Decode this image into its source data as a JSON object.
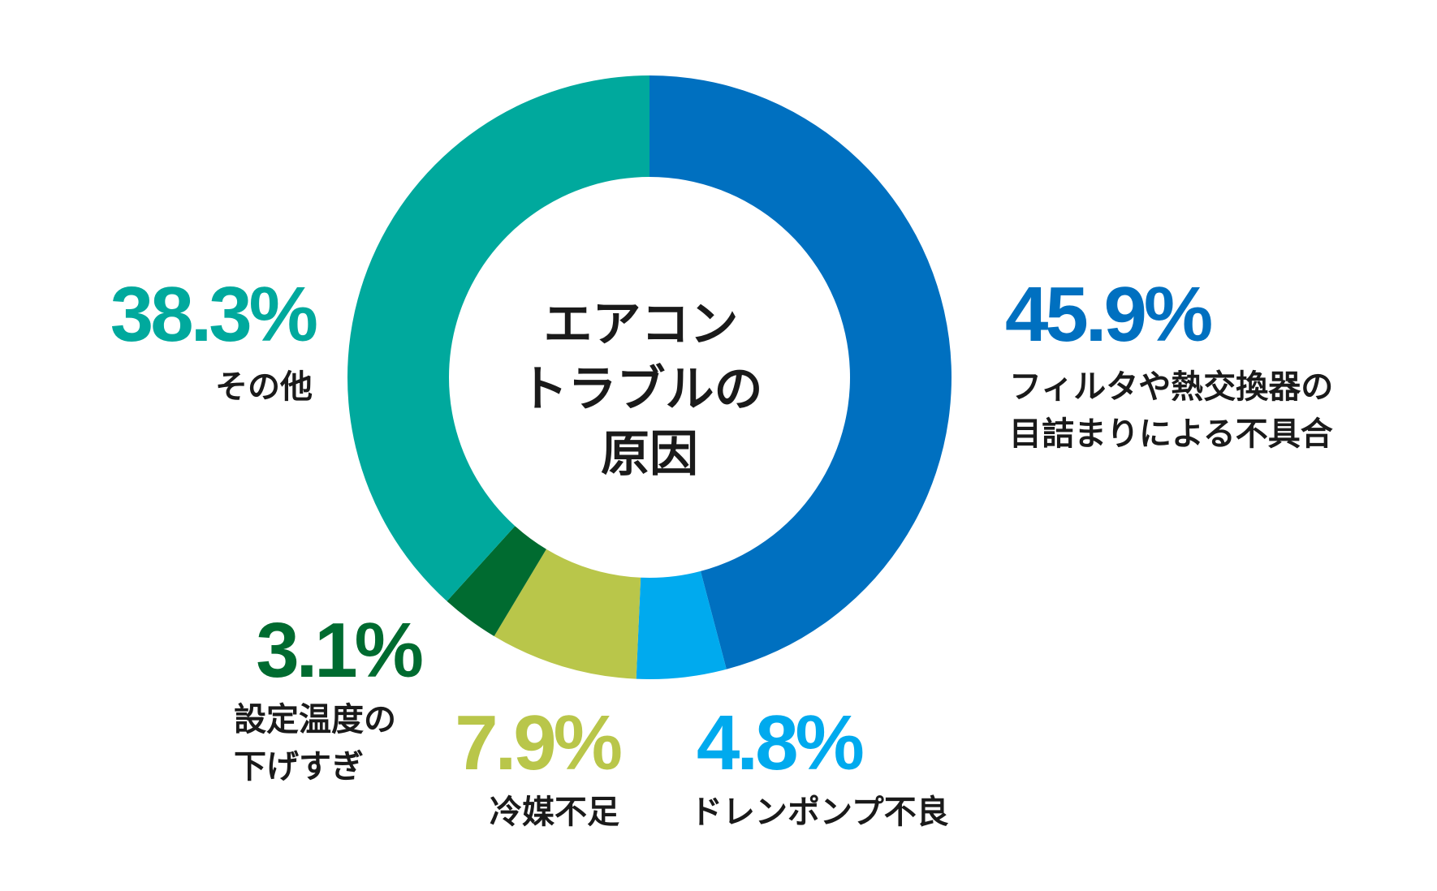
{
  "chart_data": {
    "type": "pie",
    "center_title": [
      "エアコン",
      "トラブルの",
      "原因"
    ],
    "slices": [
      {
        "label_lines": [
          "フィルタや熱交換器の",
          "目詰まりによる不具合"
        ],
        "value": 45.9,
        "value_label": "45.9%",
        "color": "#0070c0"
      },
      {
        "label_lines": [
          "ドレンポンプ不良"
        ],
        "value": 4.8,
        "value_label": "4.8%",
        "color": "#00aaee"
      },
      {
        "label_lines": [
          "冷媒不足"
        ],
        "value": 7.9,
        "value_label": "7.9%",
        "color": "#b9c64a"
      },
      {
        "label_lines": [
          "設定温度の",
          "下げすぎ"
        ],
        "value": 3.1,
        "value_label": "3.1%",
        "color": "#006b30"
      },
      {
        "label_lines": [
          "その他"
        ],
        "value": 38.3,
        "value_label": "38.3%",
        "color": "#00a99d"
      }
    ],
    "legend": "none",
    "start": "top",
    "direction": "clockwise"
  }
}
